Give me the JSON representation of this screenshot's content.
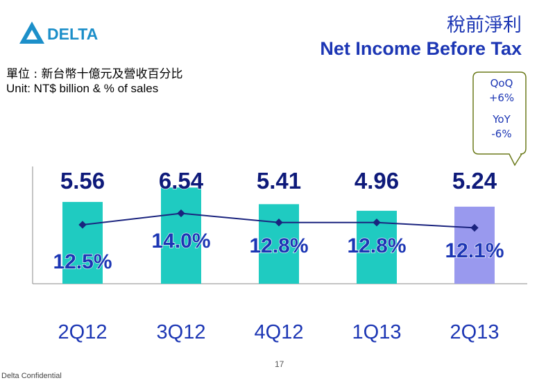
{
  "brand": {
    "name": "DELTA",
    "color": "#1c8fc9"
  },
  "title": {
    "zh": "稅前淨利",
    "en": "Net Income Before Tax"
  },
  "unit": {
    "zh": "單位 : 新台幣十億元及營收百分比",
    "en": "Unit: NT$ billion & % of sales"
  },
  "callout": {
    "qoq_label": "QoQ",
    "qoq_value": "+6%",
    "yoy_label": "YoY",
    "yoy_value": "-6%"
  },
  "chart_data": {
    "type": "bar",
    "categories": [
      "2Q12",
      "3Q12",
      "4Q12",
      "1Q13",
      "2Q13"
    ],
    "series": [
      {
        "values": [
          5.56,
          6.54,
          5.41,
          4.96,
          5.24
        ],
        "value_labels": [
          "5.56",
          "6.54",
          "5.41",
          "4.96",
          "5.24"
        ]
      },
      {
        "values": [
          12.5,
          14.0,
          12.8,
          12.8,
          12.1
        ],
        "value_labels": [
          "12.5%",
          "14.0%",
          "12.8%",
          "12.8%",
          "12.1%"
        ]
      }
    ],
    "bar_colors": [
      "#1fcbc1",
      "#1fcbc1",
      "#1fcbc1",
      "#1fcbc1",
      "#9999ee"
    ],
    "line_color": "#1a237e",
    "label_color": "#1c36b4",
    "grid": false,
    "legend": "none"
  },
  "page_number": "17",
  "footer": "Delta Confidential"
}
